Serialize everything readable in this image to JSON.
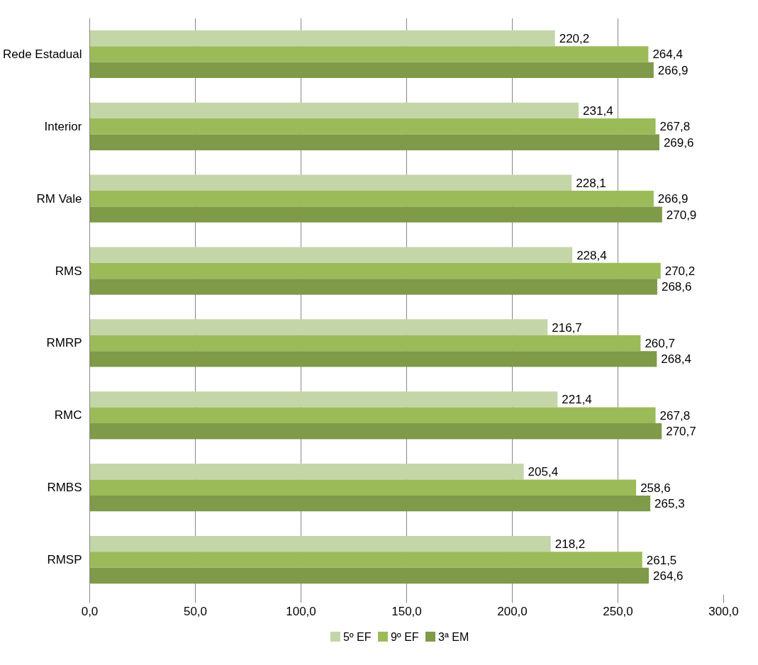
{
  "chart_data": {
    "type": "bar",
    "orientation": "horizontal",
    "categories": [
      "Rede Estadual",
      "Interior",
      "RM Vale",
      "RMS",
      "RMRP",
      "RMC",
      "RMBS",
      "RMSP"
    ],
    "series": [
      {
        "name": "5º EF",
        "color": "#c4d6a8",
        "values": [
          220.2,
          231.4,
          228.1,
          228.4,
          216.7,
          221.4,
          205.4,
          218.2
        ],
        "value_labels": [
          "220,2",
          "231,4",
          "228,1",
          "228,4",
          "216,7",
          "221,4",
          "205,4",
          "218,2"
        ]
      },
      {
        "name": "9º EF",
        "color": "#9bbb59",
        "values": [
          264.4,
          267.8,
          266.9,
          270.2,
          260.7,
          267.8,
          258.6,
          261.5
        ],
        "value_labels": [
          "264,4",
          "267,8",
          "266,9",
          "270,2",
          "260,7",
          "267,8",
          "258,6",
          "261,5"
        ]
      },
      {
        "name": "3ª EM",
        "color": "#7f9a48",
        "values": [
          266.9,
          269.6,
          270.9,
          268.6,
          268.4,
          270.7,
          265.3,
          264.6
        ],
        "value_labels": [
          "266,9",
          "269,6",
          "270,9",
          "268,6",
          "268,4",
          "270,7",
          "265,3",
          "264,6"
        ]
      }
    ],
    "xlim": [
      0,
      300
    ],
    "xticks": [
      {
        "value": 0,
        "label": "0,0"
      },
      {
        "value": 50,
        "label": "50,0"
      },
      {
        "value": 100,
        "label": "100,0"
      },
      {
        "value": 150,
        "label": "150,0"
      },
      {
        "value": 200,
        "label": "200,0"
      },
      {
        "value": 250,
        "label": "250,0"
      },
      {
        "value": 300,
        "label": "300,0"
      }
    ],
    "grid": "x",
    "legend": "bottom"
  }
}
